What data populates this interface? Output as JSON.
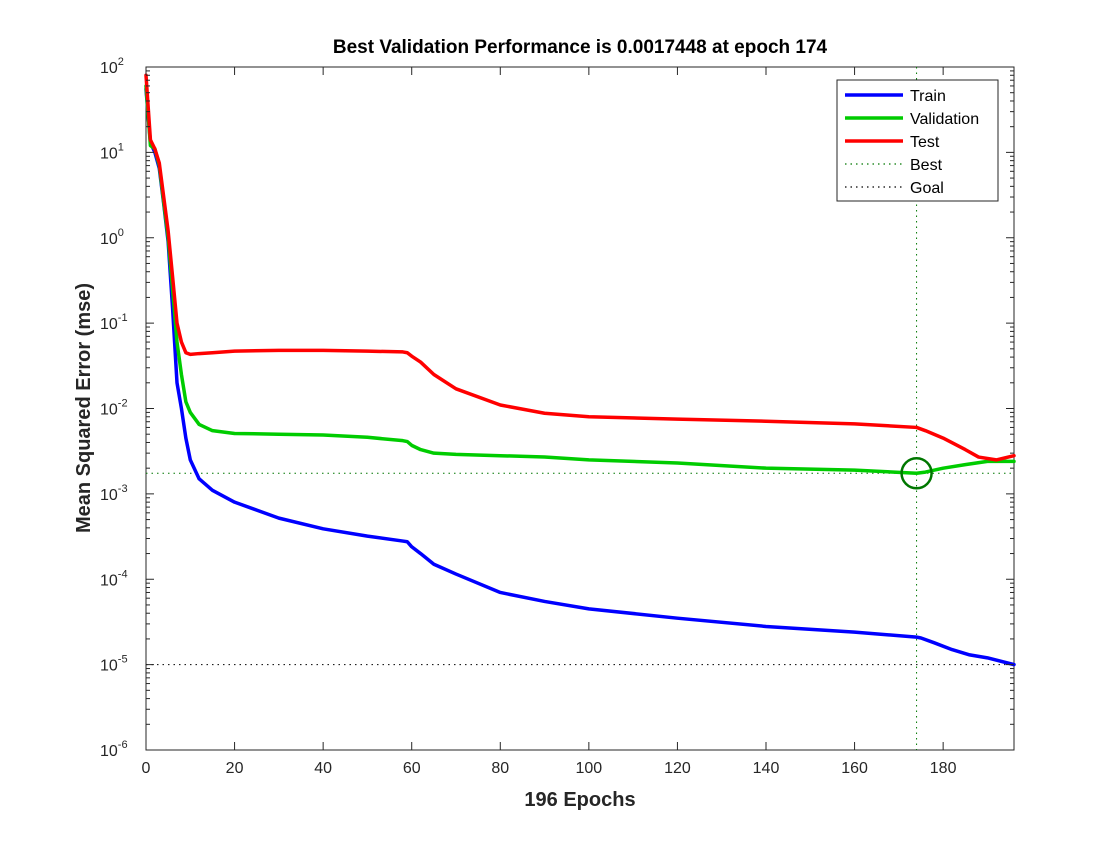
{
  "chart_data": {
    "type": "line",
    "title": "Best Validation Performance is 0.0017448 at epoch 174",
    "xlabel": "196 Epochs",
    "ylabel": "Mean Squared Error  (mse)",
    "xlim": [
      0,
      196
    ],
    "ylim": [
      1e-06,
      100
    ],
    "yscale": "log",
    "x_ticks": [
      0,
      20,
      40,
      60,
      80,
      100,
      120,
      140,
      160,
      180
    ],
    "y_ticks": [
      {
        "base": "10",
        "exp": "-6",
        "value": 1e-06
      },
      {
        "base": "10",
        "exp": "-5",
        "value": 1e-05
      },
      {
        "base": "10",
        "exp": "-4",
        "value": 0.0001
      },
      {
        "base": "10",
        "exp": "-3",
        "value": 0.001
      },
      {
        "base": "10",
        "exp": "-2",
        "value": 0.01
      },
      {
        "base": "10",
        "exp": "-1",
        "value": 0.1
      },
      {
        "base": "10",
        "exp": "0",
        "value": 1
      },
      {
        "base": "10",
        "exp": "1",
        "value": 10
      },
      {
        "base": "10",
        "exp": "2",
        "value": 100
      }
    ],
    "series": [
      {
        "name": "Train",
        "color": "#0000ff",
        "x": [
          0,
          1,
          2,
          3,
          4,
          5,
          6,
          7,
          8,
          9,
          10,
          12,
          15,
          20,
          30,
          40,
          50,
          58,
          59,
          60,
          62,
          65,
          70,
          80,
          90,
          100,
          120,
          140,
          160,
          174,
          175,
          178,
          182,
          186,
          190,
          196
        ],
        "y": [
          55,
          13,
          10,
          6.5,
          2.5,
          0.9,
          0.15,
          0.02,
          0.01,
          0.0045,
          0.0025,
          0.0015,
          0.0011,
          0.0008,
          0.00052,
          0.00039,
          0.00032,
          0.00028,
          0.000275,
          0.00024,
          0.0002,
          0.00015,
          0.000115,
          7e-05,
          5.5e-05,
          4.5e-05,
          3.5e-05,
          2.8e-05,
          2.4e-05,
          2.1e-05,
          2.05e-05,
          1.8e-05,
          1.5e-05,
          1.3e-05,
          1.2e-05,
          1e-05
        ]
      },
      {
        "name": "Validation",
        "color": "#00cc00",
        "x": [
          0,
          1,
          2,
          3,
          4,
          5,
          6,
          7,
          8,
          9,
          10,
          12,
          15,
          20,
          30,
          40,
          50,
          58,
          59,
          60,
          62,
          65,
          70,
          80,
          90,
          100,
          120,
          140,
          160,
          174,
          176,
          180,
          185,
          190,
          196
        ],
        "y": [
          60,
          12,
          11,
          7,
          2.6,
          1.0,
          0.25,
          0.06,
          0.025,
          0.012,
          0.009,
          0.0065,
          0.0055,
          0.0051,
          0.005,
          0.0049,
          0.0046,
          0.0042,
          0.0041,
          0.0037,
          0.0033,
          0.003,
          0.0029,
          0.0028,
          0.0027,
          0.0025,
          0.0023,
          0.002,
          0.0019,
          0.0017448,
          0.0018,
          0.002,
          0.0022,
          0.0024,
          0.0024
        ]
      },
      {
        "name": "Test",
        "color": "#ff0000",
        "x": [
          0,
          1,
          2,
          3,
          4,
          5,
          6,
          7,
          8,
          9,
          10,
          12,
          15,
          20,
          30,
          40,
          50,
          58,
          59,
          60,
          62,
          65,
          70,
          80,
          90,
          100,
          120,
          140,
          160,
          174,
          176,
          180,
          185,
          188,
          192,
          196
        ],
        "y": [
          80,
          14,
          11,
          7.5,
          3.0,
          1.2,
          0.35,
          0.1,
          0.06,
          0.045,
          0.043,
          0.044,
          0.045,
          0.047,
          0.048,
          0.048,
          0.047,
          0.046,
          0.045,
          0.041,
          0.035,
          0.025,
          0.017,
          0.011,
          0.0088,
          0.008,
          0.0075,
          0.0071,
          0.0066,
          0.006,
          0.0055,
          0.0045,
          0.0033,
          0.0027,
          0.0025,
          0.0028
        ]
      }
    ],
    "best": {
      "name": "Best",
      "epoch": 174,
      "value": 0.0017448,
      "color": "#007700"
    },
    "goal": {
      "name": "Goal",
      "value": 1e-05,
      "color": "#000000"
    },
    "legend": {
      "placement": "top-right",
      "entries": [
        {
          "label": "Train",
          "color": "#0000ff",
          "style": "solid"
        },
        {
          "label": "Validation",
          "color": "#00cc00",
          "style": "solid"
        },
        {
          "label": "Test",
          "color": "#ff0000",
          "style": "solid"
        },
        {
          "label": "Best",
          "color": "#007700",
          "style": "dotted"
        },
        {
          "label": "Goal",
          "color": "#000000",
          "style": "dotted"
        }
      ]
    }
  }
}
